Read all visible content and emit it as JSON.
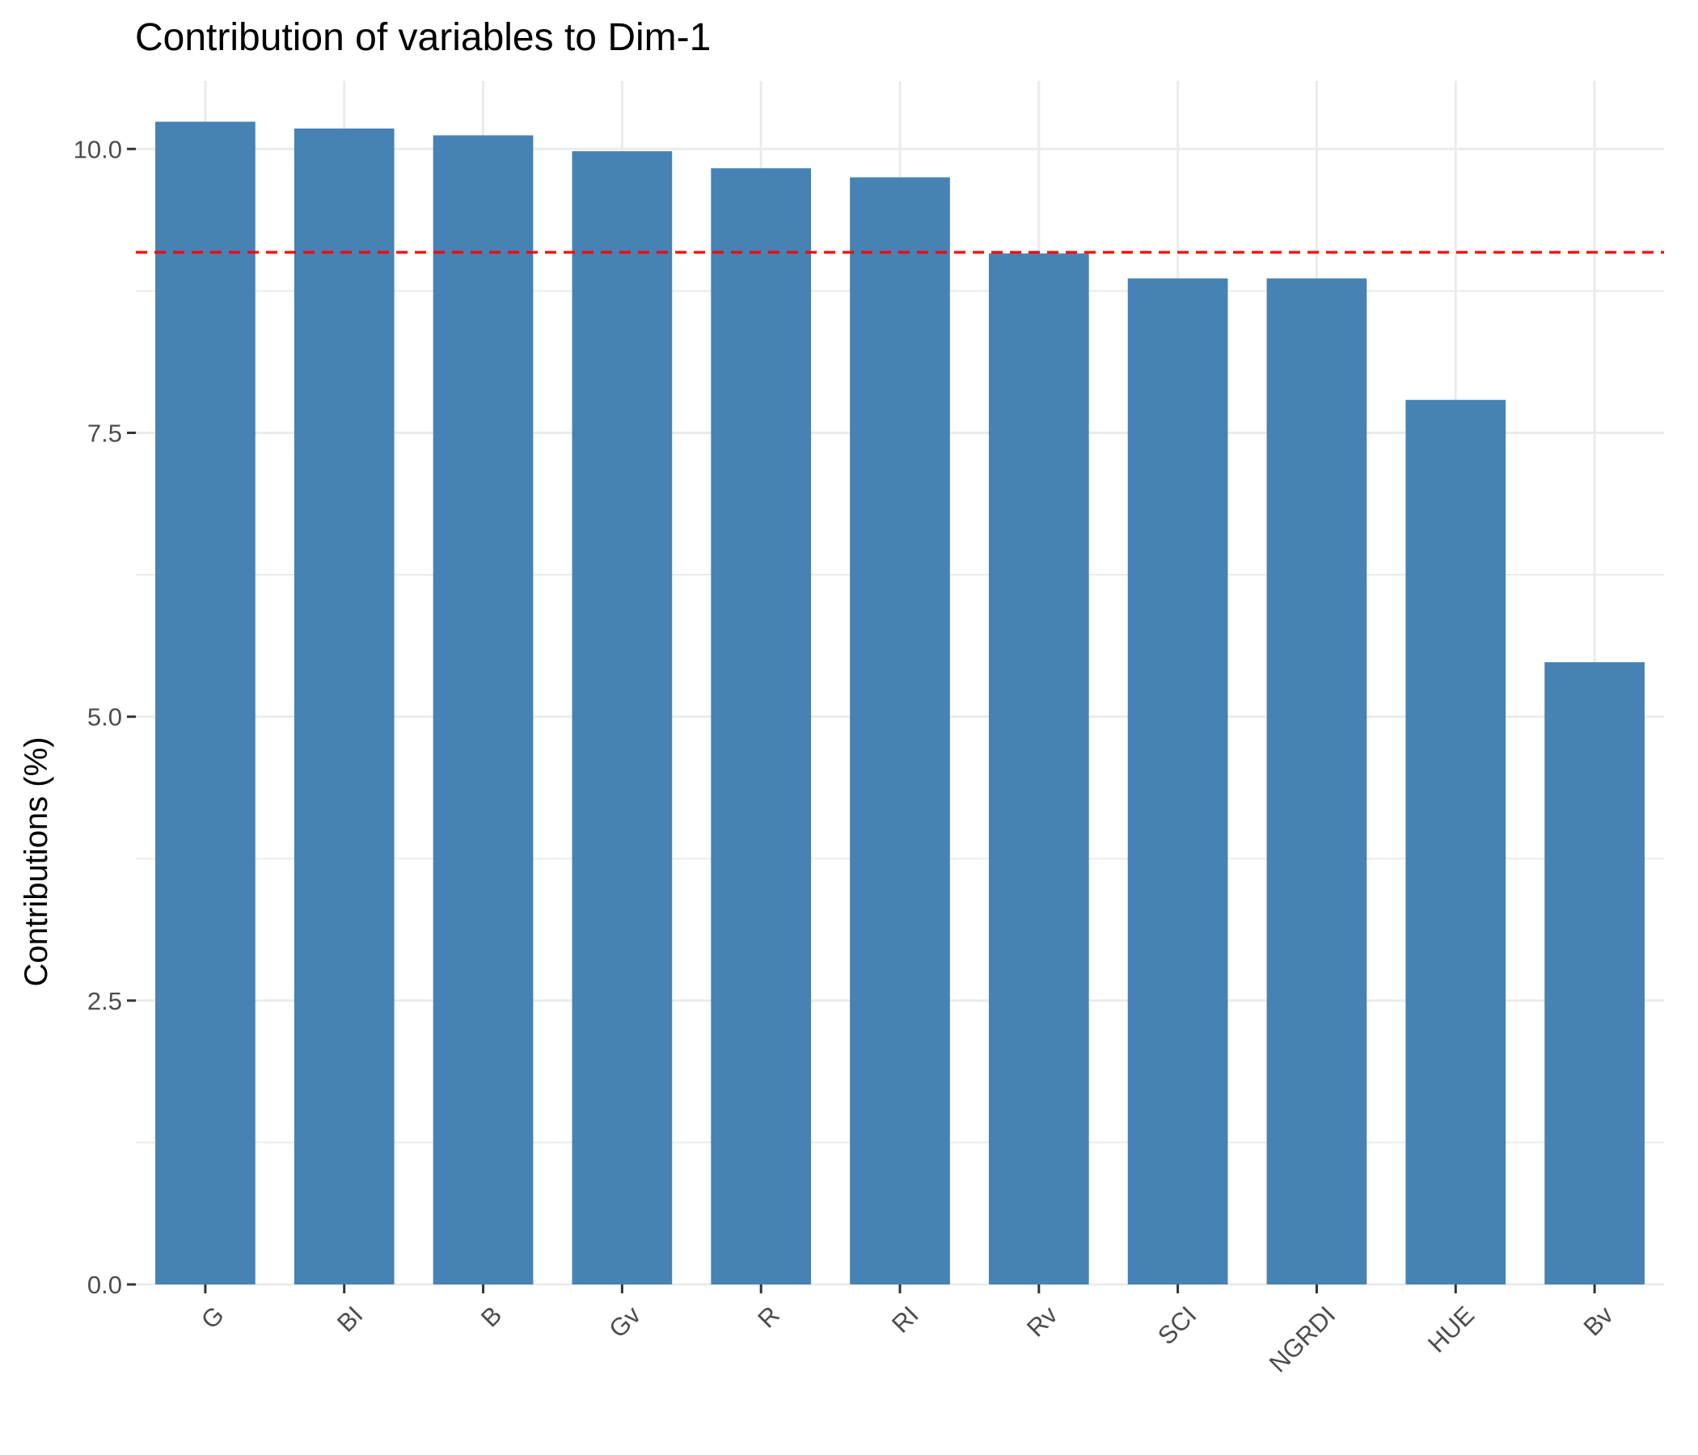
{
  "chart_data": {
    "type": "bar",
    "title": "Contribution of variables to Dim-1",
    "xlabel": "",
    "ylabel": "Contributions (%)",
    "categories": [
      "G",
      "BI",
      "B",
      "Gv",
      "R",
      "RI",
      "Rv",
      "SCI",
      "NGRDI",
      "HUE",
      "Bv"
    ],
    "values": [
      10.24,
      10.18,
      10.12,
      9.98,
      9.83,
      9.75,
      9.08,
      8.86,
      8.86,
      7.79,
      5.48
    ],
    "ylim": [
      0,
      10.6
    ],
    "yticks": [
      "0.0",
      "2.5",
      "5.0",
      "7.5",
      "10.0"
    ],
    "reference_line": 9.09,
    "grid": true,
    "colors": {
      "bar": "#4682b4",
      "reference_line": "#ff0000",
      "grid": "#ebebeb",
      "tick_text": "#4d4d4d"
    }
  }
}
